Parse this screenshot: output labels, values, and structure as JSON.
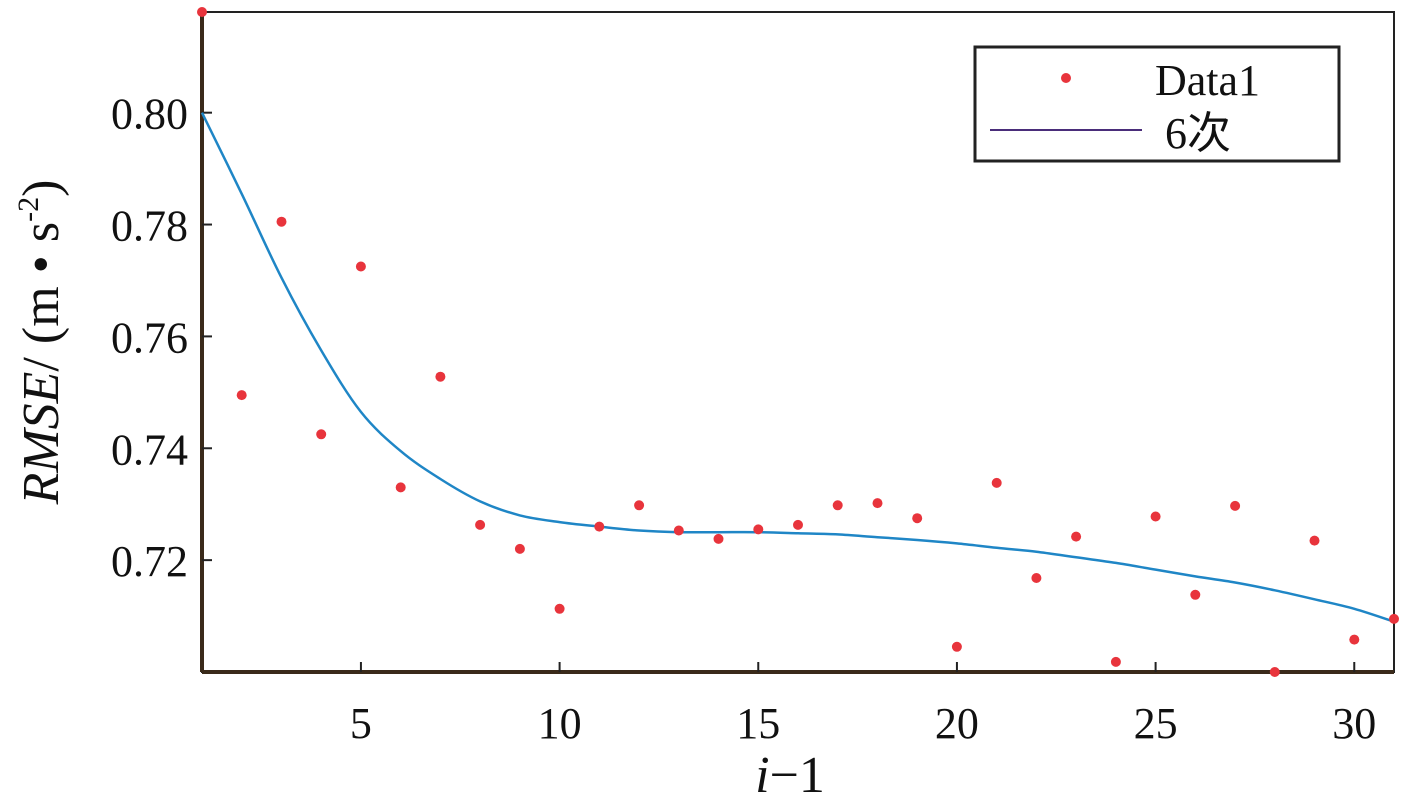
{
  "chart_data": {
    "type": "scatter",
    "xlabel": {
      "italic": "i",
      "rest": "−1"
    },
    "ylabel": {
      "italic": "RMSE",
      "rest": "/ (m • s",
      "sup": "-2",
      "close": ")"
    },
    "xlim": [
      1,
      31
    ],
    "ylim": [
      0.7,
      0.818
    ],
    "xticks": [
      5,
      10,
      15,
      20,
      25,
      30
    ],
    "ytick_labels": [
      "0.72",
      "0.74",
      "0.76",
      "0.78",
      "0.80"
    ],
    "legend_position": "top-right",
    "grid": false,
    "series": [
      {
        "name": "Data1",
        "kind": "scatter",
        "color": "#e8343c",
        "points": [
          [
            1,
            0.818
          ],
          [
            2,
            0.7495
          ],
          [
            3,
            0.7805
          ],
          [
            4,
            0.7425
          ],
          [
            5,
            0.7725
          ],
          [
            6,
            0.733
          ],
          [
            7,
            0.7528
          ],
          [
            8,
            0.7263
          ],
          [
            9,
            0.722
          ],
          [
            10,
            0.7113
          ],
          [
            11,
            0.726
          ],
          [
            12,
            0.7298
          ],
          [
            13,
            0.7253
          ],
          [
            14,
            0.7238
          ],
          [
            15,
            0.7255
          ],
          [
            16,
            0.7263
          ],
          [
            17,
            0.7298
          ],
          [
            18,
            0.7302
          ],
          [
            19,
            0.7275
          ],
          [
            20,
            0.7045
          ],
          [
            21,
            0.7338
          ],
          [
            22,
            0.7168
          ],
          [
            23,
            0.7242
          ],
          [
            24,
            0.7018
          ],
          [
            25,
            0.7278
          ],
          [
            26,
            0.7138
          ],
          [
            27,
            0.7297
          ],
          [
            28,
            0.7
          ],
          [
            29,
            0.7235
          ],
          [
            30,
            0.7058
          ],
          [
            31,
            0.7095
          ]
        ]
      },
      {
        "name": "6次",
        "kind": "line",
        "color": "#1f86c6",
        "legend_color": "#4a2d7a",
        "points": [
          [
            1,
            0.8
          ],
          [
            2,
            0.7855
          ],
          [
            3,
            0.7705
          ],
          [
            4,
            0.7575
          ],
          [
            5,
            0.7465
          ],
          [
            6,
            0.7395
          ],
          [
            7,
            0.7345
          ],
          [
            8,
            0.7305
          ],
          [
            9,
            0.728
          ],
          [
            10,
            0.7268
          ],
          [
            11,
            0.726
          ],
          [
            12,
            0.7253
          ],
          [
            13,
            0.725
          ],
          [
            14,
            0.725
          ],
          [
            15,
            0.725
          ],
          [
            16,
            0.7248
          ],
          [
            17,
            0.7246
          ],
          [
            18,
            0.7241
          ],
          [
            19,
            0.7236
          ],
          [
            20,
            0.723
          ],
          [
            21,
            0.7222
          ],
          [
            22,
            0.7215
          ],
          [
            23,
            0.7205
          ],
          [
            24,
            0.7195
          ],
          [
            25,
            0.7183
          ],
          [
            26,
            0.7171
          ],
          [
            27,
            0.716
          ],
          [
            28,
            0.7146
          ],
          [
            29,
            0.713
          ],
          [
            30,
            0.7113
          ],
          [
            31,
            0.709
          ]
        ]
      }
    ]
  }
}
